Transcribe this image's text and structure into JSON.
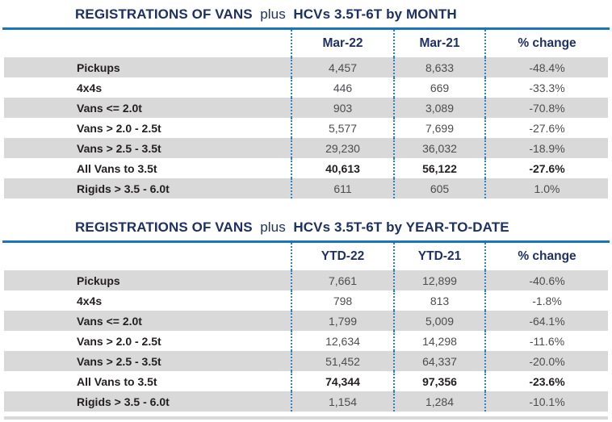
{
  "colors": {
    "title_navy": "#1e3160",
    "rule_blue": "#1b75bc",
    "dotted_separator_blue": "#2b82c9",
    "row_shade_gray": "#d9d9d9",
    "label_text": "#231f20",
    "value_text": "#4d4d4f"
  },
  "tables": [
    {
      "title": {
        "bold1": "REGISTRATIONS OF VANS",
        "light": "plus",
        "bold2": "HCVs 3.5T-6T by MONTH"
      },
      "columns": [
        "Mar-22",
        "Mar-21",
        "% change"
      ],
      "rows": [
        {
          "label": "Pickups",
          "v1": "4,457",
          "v2": "8,633",
          "change": "-48.4%",
          "emphasis": false
        },
        {
          "label": "4x4s",
          "v1": "446",
          "v2": "669",
          "change": "-33.3%",
          "emphasis": false
        },
        {
          "label": "Vans <= 2.0t",
          "v1": "903",
          "v2": "3,089",
          "change": "-70.8%",
          "emphasis": false
        },
        {
          "label": "Vans > 2.0 - 2.5t",
          "v1": "5,577",
          "v2": "7,699",
          "change": "-27.6%",
          "emphasis": false
        },
        {
          "label": "Vans > 2.5 - 3.5t",
          "v1": "29,230",
          "v2": "36,032",
          "change": "-18.9%",
          "emphasis": false
        },
        {
          "label": "All Vans to 3.5t",
          "v1": "40,613",
          "v2": "56,122",
          "change": "-27.6%",
          "emphasis": true
        },
        {
          "label": "Rigids > 3.5 - 6.0t",
          "v1": "611",
          "v2": "605",
          "change": "1.0%",
          "emphasis": false
        }
      ]
    },
    {
      "title": {
        "bold1": "REGISTRATIONS OF VANS",
        "light": "plus",
        "bold2": "HCVs 3.5T-6T by YEAR-TO-DATE"
      },
      "columns": [
        "YTD-22",
        "YTD-21",
        "% change"
      ],
      "rows": [
        {
          "label": "Pickups",
          "v1": "7,661",
          "v2": "12,899",
          "change": "-40.6%",
          "emphasis": false
        },
        {
          "label": "4x4s",
          "v1": "798",
          "v2": "813",
          "change": "-1.8%",
          "emphasis": false
        },
        {
          "label": "Vans <= 2.0t",
          "v1": "1,799",
          "v2": "5,009",
          "change": "-64.1%",
          "emphasis": false
        },
        {
          "label": "Vans > 2.0 - 2.5t",
          "v1": "12,634",
          "v2": "14,298",
          "change": "-11.6%",
          "emphasis": false
        },
        {
          "label": "Vans > 2.5 - 3.5t",
          "v1": "51,452",
          "v2": "64,337",
          "change": "-20.0%",
          "emphasis": false
        },
        {
          "label": "All Vans to 3.5t",
          "v1": "74,344",
          "v2": "97,356",
          "change": "-23.6%",
          "emphasis": true
        },
        {
          "label": "Rigids > 3.5 - 6.0t",
          "v1": "1,154",
          "v2": "1,284",
          "change": "-10.1%",
          "emphasis": false
        }
      ]
    }
  ]
}
